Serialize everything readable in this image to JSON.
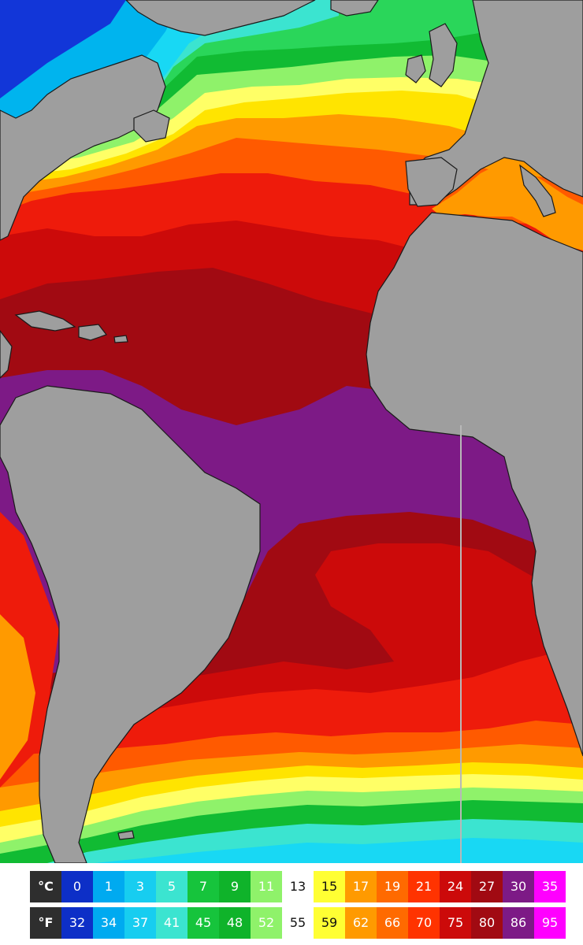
{
  "map": {
    "colors": {
      "land": "#9e9e9e",
      "border": "#1a1a1a",
      "deep_blue": "#1236d8",
      "sea_86": "#7d1a86",
      "sea_80": "#a10a12",
      "sea_75": "#cc0a0a",
      "sea_70": "#ee1b0b",
      "sea_66": "#ff5a00",
      "sea_62": "#ff9a00",
      "sea_59": "#ffe400",
      "sea_55": "#ffff66",
      "sea_52": "#8ff26a",
      "sea_48": "#11bb33",
      "sea_45": "#2ad65a",
      "sea_41": "#3be4d0",
      "sea_37": "#18d8f4",
      "sea_34": "#00b4ee"
    }
  },
  "legend": {
    "celsius": {
      "unit_label": "°C",
      "cells": [
        {
          "label": "0",
          "bg": "#0d2fc7",
          "fg": "#ffffff"
        },
        {
          "label": "1",
          "bg": "#00aaf0",
          "fg": "#ffffff"
        },
        {
          "label": "3",
          "bg": "#17cdf0",
          "fg": "#ffffff"
        },
        {
          "label": "5",
          "bg": "#3be4d0",
          "fg": "#ffffff"
        },
        {
          "label": "7",
          "bg": "#16c43c",
          "fg": "#ffffff"
        },
        {
          "label": "9",
          "bg": "#0fb32a",
          "fg": "#ffffff"
        },
        {
          "label": "11",
          "bg": "#8ff26a",
          "fg": "#ffffff"
        },
        {
          "label": "13",
          "bg": "#ffffff",
          "fg": "#111111"
        },
        {
          "label": "15",
          "bg": "#ffff33",
          "fg": "#111111"
        },
        {
          "label": "17",
          "bg": "#ff9a00",
          "fg": "#ffffff"
        },
        {
          "label": "19",
          "bg": "#ff6a00",
          "fg": "#ffffff"
        },
        {
          "label": "21",
          "bg": "#ff3300",
          "fg": "#ffffff"
        },
        {
          "label": "24",
          "bg": "#cc0a0a",
          "fg": "#ffffff"
        },
        {
          "label": "27",
          "bg": "#a10a12",
          "fg": "#ffffff"
        },
        {
          "label": "30",
          "bg": "#7d1a86",
          "fg": "#ffffff"
        },
        {
          "label": "35",
          "bg": "#ff00ff",
          "fg": "#ffffff"
        }
      ]
    },
    "fahrenheit": {
      "unit_label": "°F",
      "cells": [
        {
          "label": "32",
          "bg": "#0d2fc7",
          "fg": "#ffffff"
        },
        {
          "label": "34",
          "bg": "#00aaf0",
          "fg": "#ffffff"
        },
        {
          "label": "37",
          "bg": "#17cdf0",
          "fg": "#ffffff"
        },
        {
          "label": "41",
          "bg": "#3be4d0",
          "fg": "#ffffff"
        },
        {
          "label": "45",
          "bg": "#16c43c",
          "fg": "#ffffff"
        },
        {
          "label": "48",
          "bg": "#0fb32a",
          "fg": "#ffffff"
        },
        {
          "label": "52",
          "bg": "#8ff26a",
          "fg": "#ffffff"
        },
        {
          "label": "55",
          "bg": "#ffffff",
          "fg": "#111111"
        },
        {
          "label": "59",
          "bg": "#ffff33",
          "fg": "#111111"
        },
        {
          "label": "62",
          "bg": "#ff9a00",
          "fg": "#ffffff"
        },
        {
          "label": "66",
          "bg": "#ff6a00",
          "fg": "#ffffff"
        },
        {
          "label": "70",
          "bg": "#ff3300",
          "fg": "#ffffff"
        },
        {
          "label": "75",
          "bg": "#cc0a0a",
          "fg": "#ffffff"
        },
        {
          "label": "80",
          "bg": "#a10a12",
          "fg": "#ffffff"
        },
        {
          "label": "86",
          "bg": "#7d1a86",
          "fg": "#ffffff"
        },
        {
          "label": "95",
          "bg": "#ff00ff",
          "fg": "#ffffff"
        }
      ]
    }
  }
}
